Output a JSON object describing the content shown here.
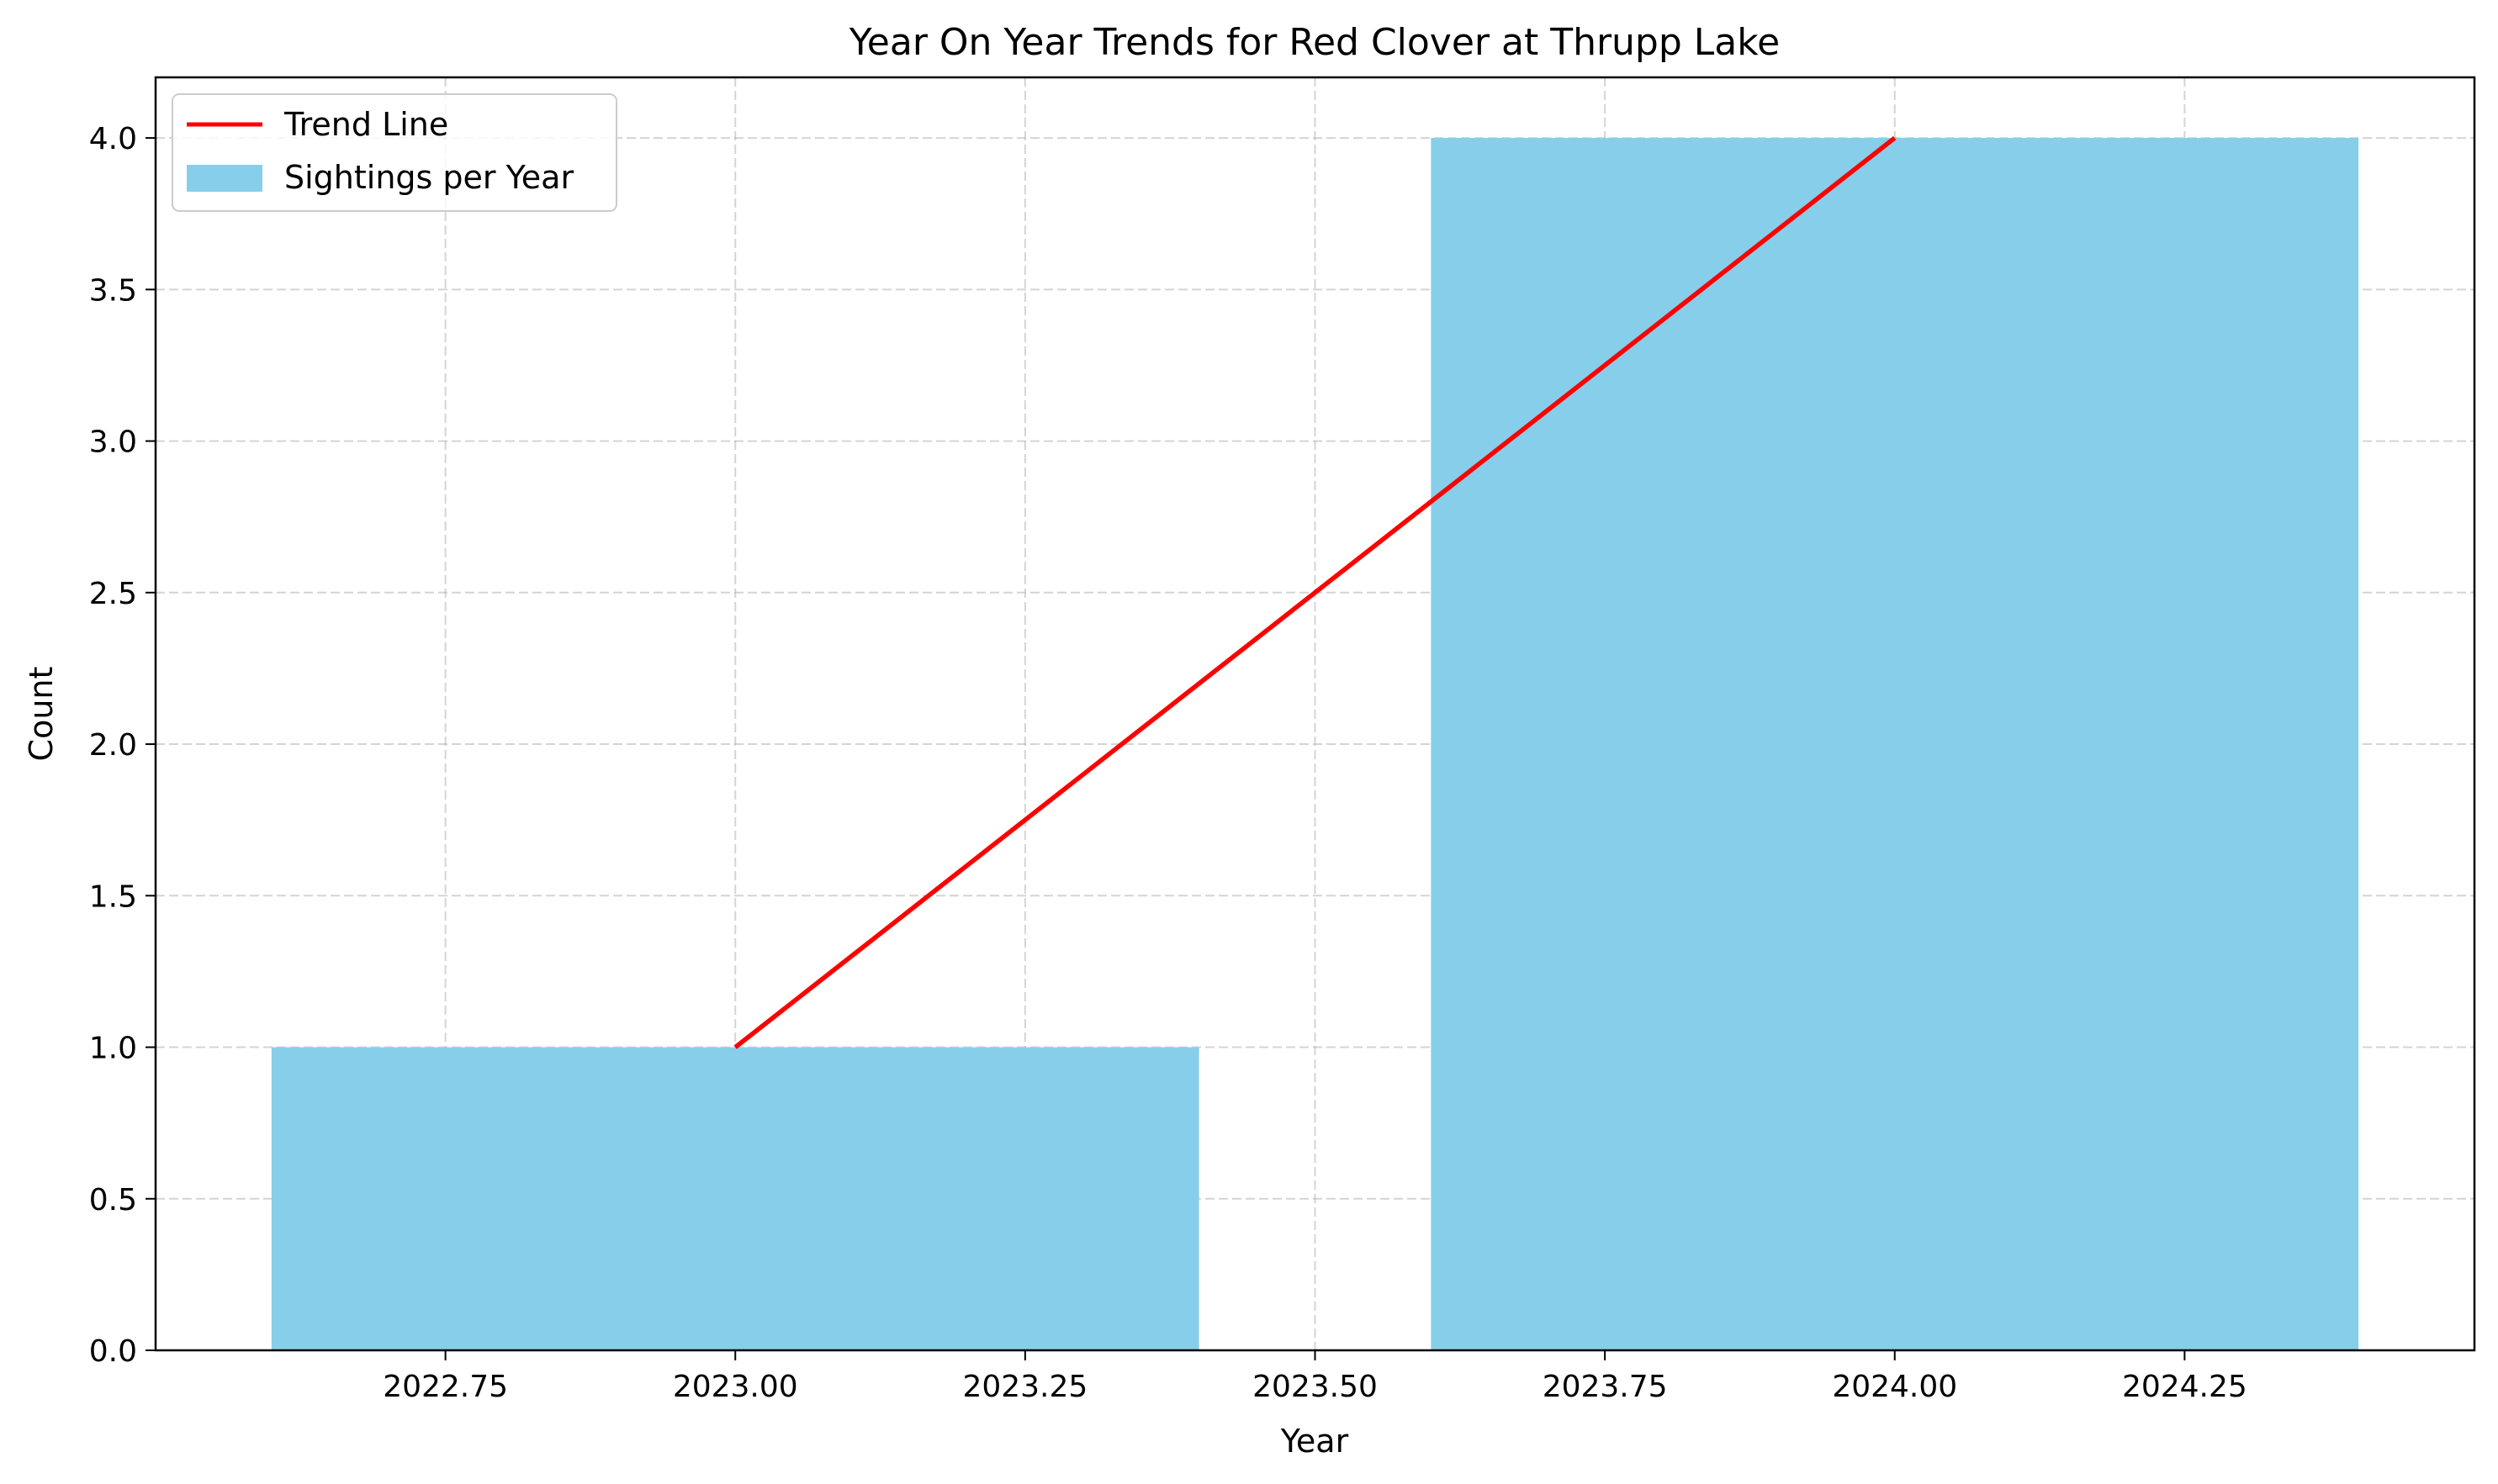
{
  "chart_data": {
    "type": "bar",
    "title": "Year On Year Trends for Red Clover at Thrupp Lake",
    "xlabel": "Year",
    "ylabel": "Count",
    "xlim": [
      2022.5,
      2024.5
    ],
    "ylim": [
      0,
      4.2
    ],
    "x_ticks": [
      2022.75,
      2023.0,
      2023.25,
      2023.5,
      2023.75,
      2024.0,
      2024.25
    ],
    "x_tick_labels": [
      "2022.75",
      "2023.00",
      "2023.25",
      "2023.50",
      "2023.75",
      "2024.00",
      "2024.25"
    ],
    "y_ticks": [
      0,
      0.5,
      1.0,
      1.5,
      2.0,
      2.5,
      3.0,
      3.5,
      4.0
    ],
    "y_tick_labels": [
      "0.0",
      "0.5",
      "1.0",
      "1.5",
      "2.0",
      "2.5",
      "3.0",
      "3.5",
      "4.0"
    ],
    "grid": true,
    "legend_position": "top-left",
    "bars": {
      "name": "Sightings per Year",
      "x": [
        2023,
        2024
      ],
      "values": [
        1,
        4
      ],
      "width": 0.8,
      "color": "#87ceeb"
    },
    "trend_line": {
      "name": "Trend Line",
      "x": [
        2023,
        2024
      ],
      "y": [
        1,
        4
      ],
      "color": "#ff0000"
    }
  }
}
